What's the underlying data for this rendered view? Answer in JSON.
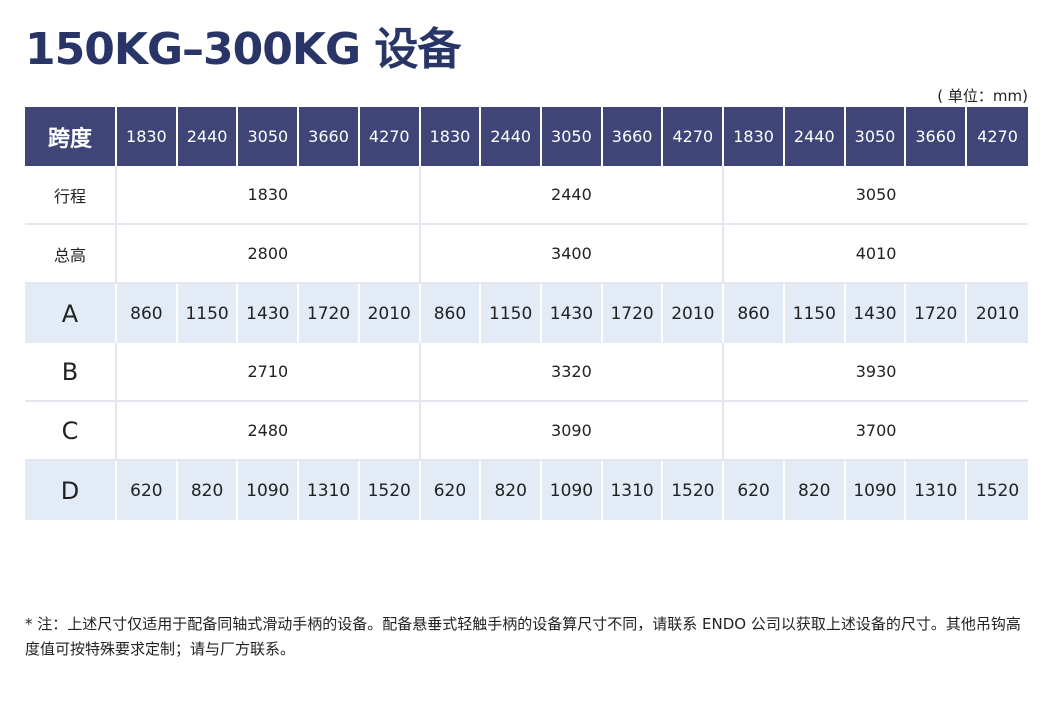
{
  "title": "150KG–300KG 设备",
  "unit": "( 单位：mm)",
  "table": {
    "header_label": "跨度",
    "spans": [
      "1830",
      "2440",
      "3050",
      "3660",
      "4270",
      "1830",
      "2440",
      "3050",
      "3660",
      "4270",
      "1830",
      "2440",
      "3050",
      "3660",
      "4270"
    ],
    "stroke": {
      "label": "行程",
      "values": [
        "1830",
        "2440",
        "3050"
      ]
    },
    "total_height": {
      "label": "总高",
      "values": [
        "2800",
        "3400",
        "4010"
      ]
    },
    "A": {
      "label": "A",
      "values": [
        "860",
        "1150",
        "1430",
        "1720",
        "2010",
        "860",
        "1150",
        "1430",
        "1720",
        "2010",
        "860",
        "1150",
        "1430",
        "1720",
        "2010"
      ]
    },
    "B": {
      "label": "B",
      "values": [
        "2710",
        "3320",
        "3930"
      ]
    },
    "C": {
      "label": "C",
      "values": [
        "2480",
        "3090",
        "3700"
      ]
    },
    "D": {
      "label": "D",
      "values": [
        "620",
        "820",
        "1090",
        "1310",
        "1520",
        "620",
        "820",
        "1090",
        "1310",
        "1520",
        "620",
        "820",
        "1090",
        "1310",
        "1520"
      ]
    }
  },
  "note": "* 注：上述尺寸仅适用于配备同轴式滑动手柄的设备。配备悬垂式轻触手柄的设备算尺寸不同，请联系 ENDO 公司以获取上述设备的尺寸。其他吊钩高度值可按特殊要求定制；请与厂方联系。"
}
